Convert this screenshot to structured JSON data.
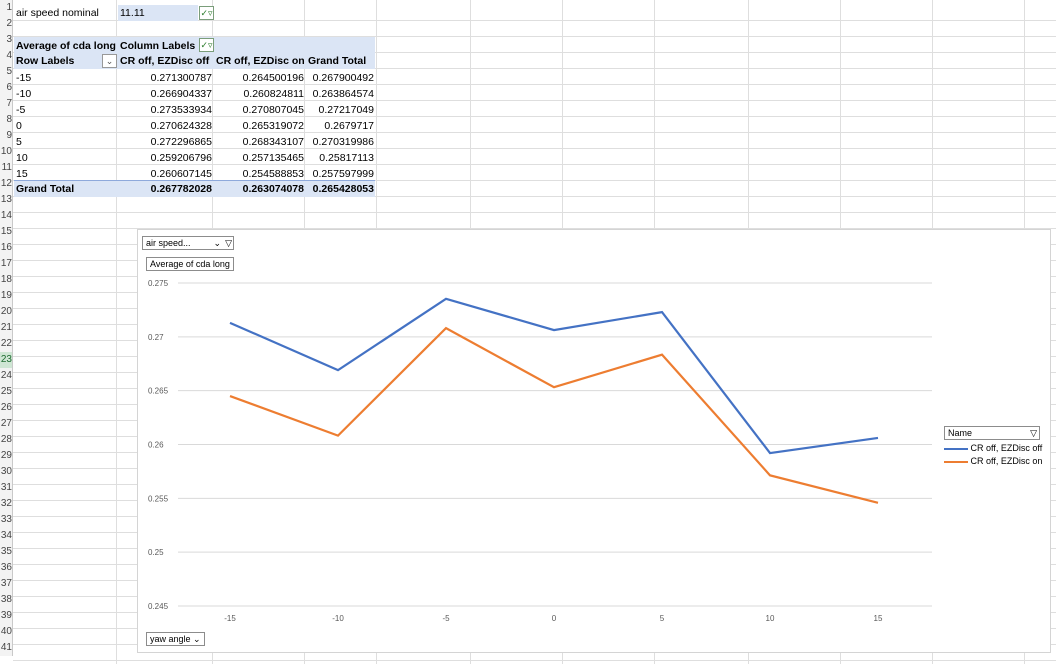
{
  "report_filter": {
    "label": "air speed nominal",
    "value": "11.11"
  },
  "pivot": {
    "values_label": "Average of cda long",
    "column_labels": "Column Labels",
    "row_labels": "Row Labels",
    "columns": [
      "CR off, EZDisc off",
      "CR off, EZDisc on",
      "Grand Total"
    ],
    "rows": [
      {
        "label": "-15",
        "values": [
          "0.271300787",
          "0.264500196",
          "0.267900492"
        ]
      },
      {
        "label": "-10",
        "values": [
          "0.266904337",
          "0.260824811",
          "0.263864574"
        ]
      },
      {
        "label": "-5",
        "values": [
          "0.273533934",
          "0.270807045",
          "0.27217049"
        ]
      },
      {
        "label": "0",
        "values": [
          "0.270624328",
          "0.265319072",
          "0.2679717"
        ]
      },
      {
        "label": "5",
        "values": [
          "0.272296865",
          "0.268343107",
          "0.270319986"
        ]
      },
      {
        "label": "10",
        "values": [
          "0.259206796",
          "0.257135465",
          "0.25817113"
        ]
      },
      {
        "label": "15",
        "values": [
          "0.260607145",
          "0.254588853",
          "0.257597999"
        ]
      }
    ],
    "grand_total": {
      "label": "Grand Total",
      "values": [
        "0.267782028",
        "0.263074078",
        "0.265428053"
      ]
    }
  },
  "row_numbers": [
    "1",
    "2",
    "3",
    "4",
    "5",
    "6",
    "7",
    "8",
    "9",
    "10",
    "11",
    "12",
    "13",
    "14",
    "15",
    "16",
    "17",
    "18",
    "19",
    "20",
    "21",
    "22",
    "23",
    "24",
    "25",
    "26",
    "27",
    "28",
    "29",
    "30",
    "31",
    "32",
    "33",
    "34",
    "35",
    "36",
    "37",
    "38",
    "39",
    "40",
    "41"
  ],
  "chart_ui": {
    "filter_button": "air speed...",
    "value_button": "Average of cda long",
    "axis_button": "yaw angle",
    "legend_title": "Name"
  },
  "colors": {
    "series1": "#4472c4",
    "series2": "#ed7d31",
    "pivot_header": "#dbe5f5",
    "selected_row": "#cfe6d4"
  },
  "chart_data": {
    "type": "line",
    "x": [
      -15,
      -10,
      -5,
      0,
      5,
      10,
      15
    ],
    "x_tick_labels": [
      "-15",
      "-10",
      "-5",
      "0",
      "5",
      "10",
      "15"
    ],
    "y_tick_labels": [
      "0.275",
      "0.27",
      "0.265",
      "0.26",
      "0.255",
      "0.25",
      "0.245"
    ],
    "ylim": [
      0.245,
      0.275
    ],
    "grid": true,
    "legend_position": "right",
    "series": [
      {
        "name": "CR off, EZDisc off",
        "values": [
          0.271300787,
          0.266904337,
          0.273533934,
          0.270624328,
          0.272296865,
          0.259206796,
          0.260607145
        ]
      },
      {
        "name": "CR off, EZDisc on",
        "values": [
          0.264500196,
          0.260824811,
          0.270807045,
          0.265319072,
          0.268343107,
          0.257135465,
          0.254588853
        ]
      }
    ]
  }
}
